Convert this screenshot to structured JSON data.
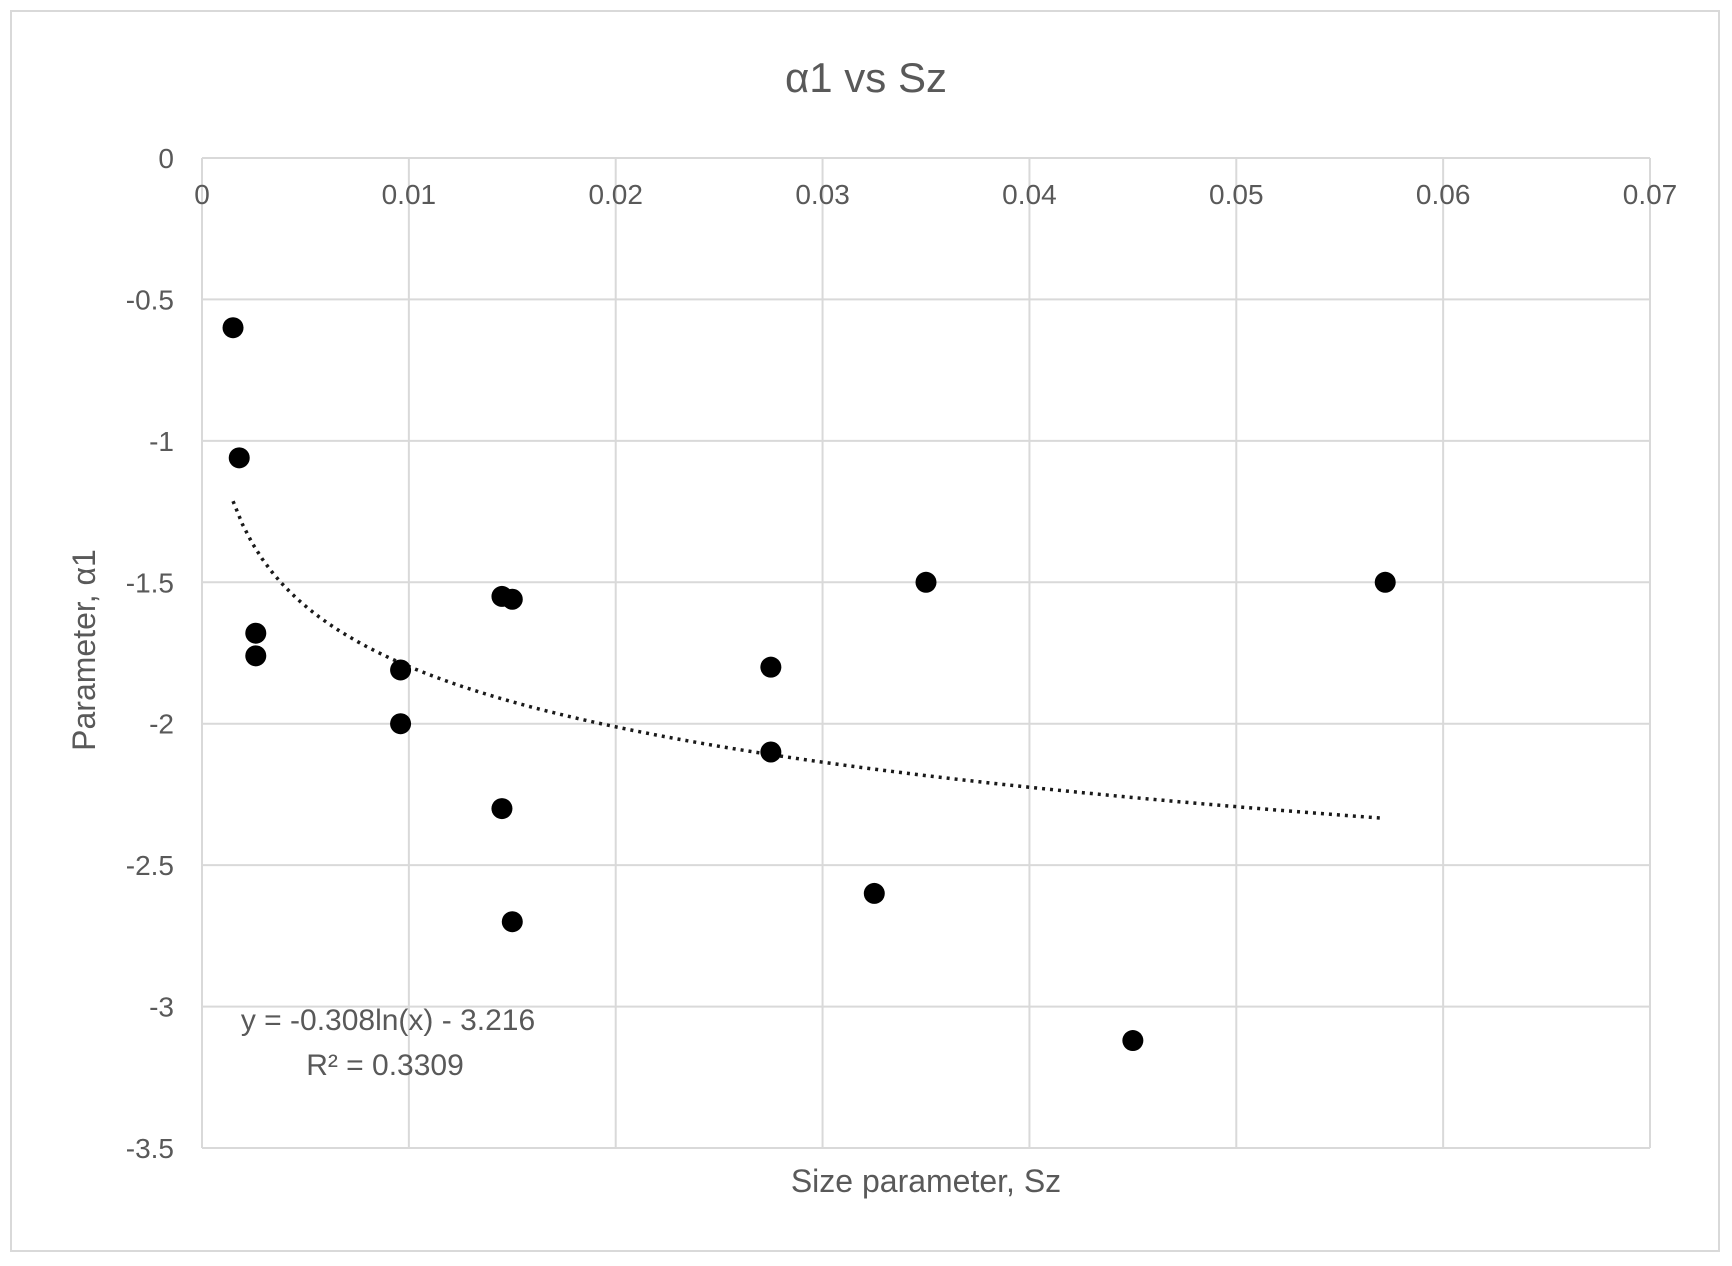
{
  "chart_data": {
    "type": "scatter",
    "title": "α1 vs Sz",
    "xlabel": "Size parameter, Sz",
    "ylabel": "Parameter, α1",
    "xlim": [
      0,
      0.07
    ],
    "ylim": [
      -3.5,
      0
    ],
    "x_ticks": [
      "0",
      "0.01",
      "0.02",
      "0.03",
      "0.04",
      "0.05",
      "0.06",
      "0.07"
    ],
    "y_ticks": [
      "0",
      "-0.5",
      "-1",
      "-1.5",
      "-2",
      "-2.5",
      "-3",
      "-3.5"
    ],
    "x_axis_position": "top",
    "grid": true,
    "legend": "none",
    "marker_color": "#000000",
    "grid_color": "#d9d9d9",
    "points": [
      {
        "x": 0.0015,
        "y": -0.6
      },
      {
        "x": 0.0018,
        "y": -1.06
      },
      {
        "x": 0.0026,
        "y": -1.68
      },
      {
        "x": 0.0026,
        "y": -1.76
      },
      {
        "x": 0.0096,
        "y": -1.81
      },
      {
        "x": 0.0096,
        "y": -2.0
      },
      {
        "x": 0.0145,
        "y": -1.55
      },
      {
        "x": 0.015,
        "y": -1.56
      },
      {
        "x": 0.0145,
        "y": -2.3
      },
      {
        "x": 0.015,
        "y": -2.7
      },
      {
        "x": 0.0275,
        "y": -1.8
      },
      {
        "x": 0.0275,
        "y": -2.1
      },
      {
        "x": 0.0325,
        "y": -2.6
      },
      {
        "x": 0.035,
        "y": -1.5
      },
      {
        "x": 0.045,
        "y": -3.12
      },
      {
        "x": 0.0572,
        "y": -1.5
      }
    ],
    "trendline": {
      "type": "logarithmic",
      "style": "dotted",
      "a": -0.308,
      "b": -3.216,
      "x_range": [
        0.0015,
        0.057
      ],
      "equation": "y = -0.308ln(x) - 3.216",
      "r_squared": "R² = 0.3309"
    }
  }
}
